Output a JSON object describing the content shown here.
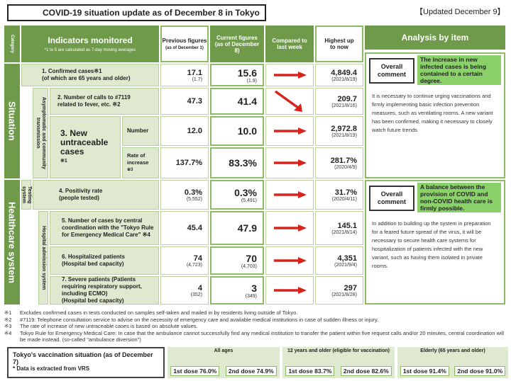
{
  "title": "COVID-19 situation update as of December 8 in Tokyo",
  "updated": "【Updated December 9】",
  "header": {
    "category": "Category",
    "indicators": "Indicators monitored",
    "indicators_note": "*1 to 5 are calculated as 7-day moving averages",
    "prev": "Previous figures",
    "prev_sub": "(as of December 1)",
    "cur": "Current figures (as of December 8)",
    "compared": "Compared to last week",
    "highest": "Highest up to now",
    "analysis": "Analysis by item"
  },
  "groups": {
    "situation": "Situation",
    "healthcare": "Healthcare system",
    "asymp": "Asymptomatic and community transmission",
    "testing": "Testing system",
    "hospital": "Hospital admission system"
  },
  "rows": [
    {
      "label": "1. Confirmed cases※1",
      "label2": "(of which are 65 years and older)",
      "prev": "17.1",
      "prev_sub": "(1.7)",
      "cur": "15.6",
      "cur_sub": "(1.9)",
      "high": "4,849.4",
      "high_sub": "(2021/8/19)",
      "arrow": "right"
    },
    {
      "label": "2. Number of calls to #7119",
      "label2": "related to fever, etc. ※2",
      "prev": "47.3",
      "prev_sub": "",
      "cur": "41.4",
      "cur_sub": "",
      "high": "209.7",
      "high_sub": "(2021/8/16)",
      "arrow": "down"
    },
    {
      "label": "Number",
      "label2": "",
      "prev": "12.0",
      "prev_sub": "",
      "cur": "10.0",
      "cur_sub": "",
      "high": "2,972.8",
      "high_sub": "(2021/8/19)",
      "arrow": "right"
    },
    {
      "label": "Rate of increase",
      "label2": "※3",
      "prev": "137.7%",
      "prev_sub": "",
      "cur": "83.3%",
      "cur_sub": "",
      "high": "281.7%",
      "high_sub": "(2020/4/9)",
      "arrow": "right"
    },
    {
      "label": "4. Positivity rate",
      "label2": "(people tested)",
      "prev": "0.3%",
      "prev_sub": "(5,552)",
      "cur": "0.3%",
      "cur_sub": "(5,491)",
      "high": "31.7%",
      "high_sub": "(2020/4/11)",
      "arrow": "right"
    },
    {
      "label": "5. Number of cases by central coordination with the \"Tokyo Rule for Emergency Medical Care\" ※4",
      "label2": "",
      "prev": "45.4",
      "prev_sub": "",
      "cur": "47.9",
      "cur_sub": "",
      "high": "145.1",
      "high_sub": "(2021/8/14)",
      "arrow": "right"
    },
    {
      "label": "6. Hospitalized patients",
      "label2": "(Hospital bed capacity)",
      "prev": "74",
      "prev_sub": "(4,723)",
      "cur": "70",
      "cur_sub": "(4,703)",
      "high": "4,351",
      "high_sub": "(2021/9/4)",
      "arrow": "right"
    },
    {
      "label": "7. Severe patients (Patients requiring respiratory support, including ECMO)",
      "label2": "(Hospital bed capacity)",
      "prev": "4",
      "prev_sub": "(352)",
      "cur": "3",
      "cur_sub": "(349)",
      "high": "297",
      "high_sub": "(2021/8/28)",
      "arrow": "right"
    }
  ],
  "untraceable": {
    "title": "3. New untraceable cases",
    "note": "※1"
  },
  "analysis": {
    "situation": {
      "label": "Overall comment",
      "summary": "The increase in new infected cases is being contained to a certain degree.",
      "detail": "It is necessary to continue urging vaccinations and firmly implementing basic infection prevention measures, such as ventilating rooms. A new variant has been confirmed, making it necessary to closely watch future trends."
    },
    "healthcare": {
      "label": "Overall comment",
      "summary": "A balance between the provision of COVID and non-COVID health care is firmly possible.",
      "detail": "In addition to building up the system in preparation for a feared future spread of the virus, it will be necessary to secure health care systems for hospitalization of patients infected with the new variant, such as having them isolated in private rooms."
    }
  },
  "notes": [
    {
      "mark": "※1",
      "text": "Excludes confirmed cases in tests conducted on samples self-taken and mailed in by residents living outside of Tokyo."
    },
    {
      "mark": "※2",
      "text": "#7119: Telephone consultation service to advise on the necessity of emergency care and available medical institutions in case of sudden illness or injury."
    },
    {
      "mark": "※3",
      "text": "The rate of increase of new untraceable cases is based on absolute values."
    },
    {
      "mark": "※4",
      "text": "Tokyo Rule for Emergency Medical Care: In case that the ambulance cannot successfully find any medical institution to transfer the patient within five request calls and/or 20 minutes, central coordination will be made instead. (so-called \"ambulance diversion\")"
    }
  ],
  "vaccination": {
    "title": "Tokyo's vaccination situation (as of December 7)",
    "sub": "* Data is extracted from VRS",
    "groups": [
      {
        "name": "All ages",
        "d1": "1st dose 76.0%",
        "d2": "2nd dose 74.9%"
      },
      {
        "name": "12 years and older (eligible for vaccination)",
        "d1": "1st dose 83.7%",
        "d2": "2nd dose 82.6%"
      },
      {
        "name": "Elderly (65 years and older)",
        "d1": "1st dose 91.4%",
        "d2": "2nd dose 91.0%"
      }
    ]
  },
  "colors": {
    "header_green": "#6f9a4a",
    "light_green": "#dfe9cf",
    "highlight_green": "#8bd16a",
    "arrow_red": "#d8231b"
  }
}
